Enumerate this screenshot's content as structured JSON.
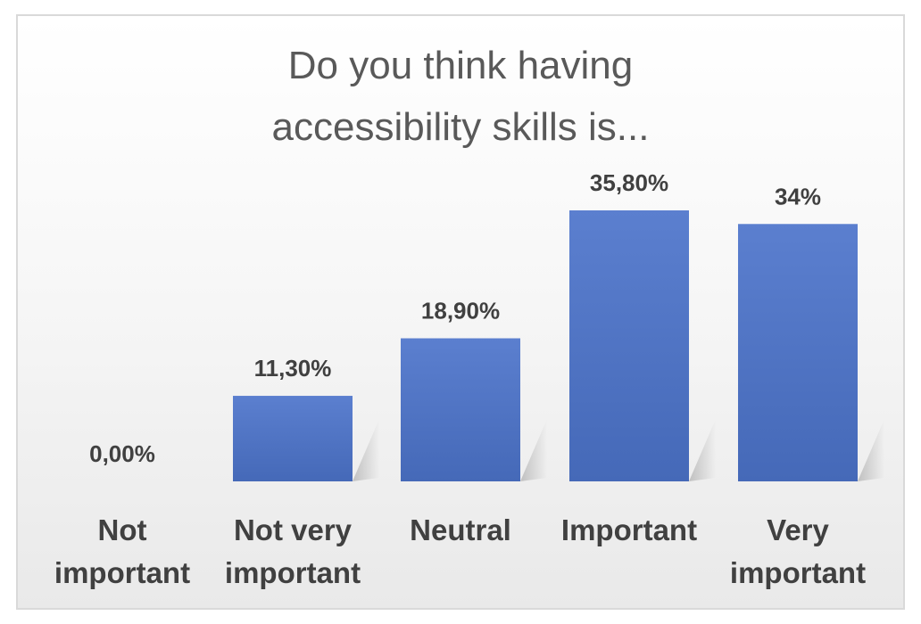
{
  "chart_data": {
    "type": "bar",
    "title_lines": [
      "Do you think having",
      "accessibility skills is..."
    ],
    "categories": [
      [
        "Not",
        "important"
      ],
      [
        "Not very",
        "important"
      ],
      [
        "Neutral"
      ],
      [
        "Important"
      ],
      [
        "Very",
        "important"
      ]
    ],
    "values": [
      0.0,
      11.3,
      18.9,
      35.8,
      34.0
    ],
    "data_labels": [
      "0,00%",
      "11,30%",
      "18,90%",
      "35,80%",
      "34%"
    ],
    "ylim": [
      0,
      40
    ],
    "grid": false,
    "legend": "none",
    "bar_color": "#4a72c4"
  }
}
